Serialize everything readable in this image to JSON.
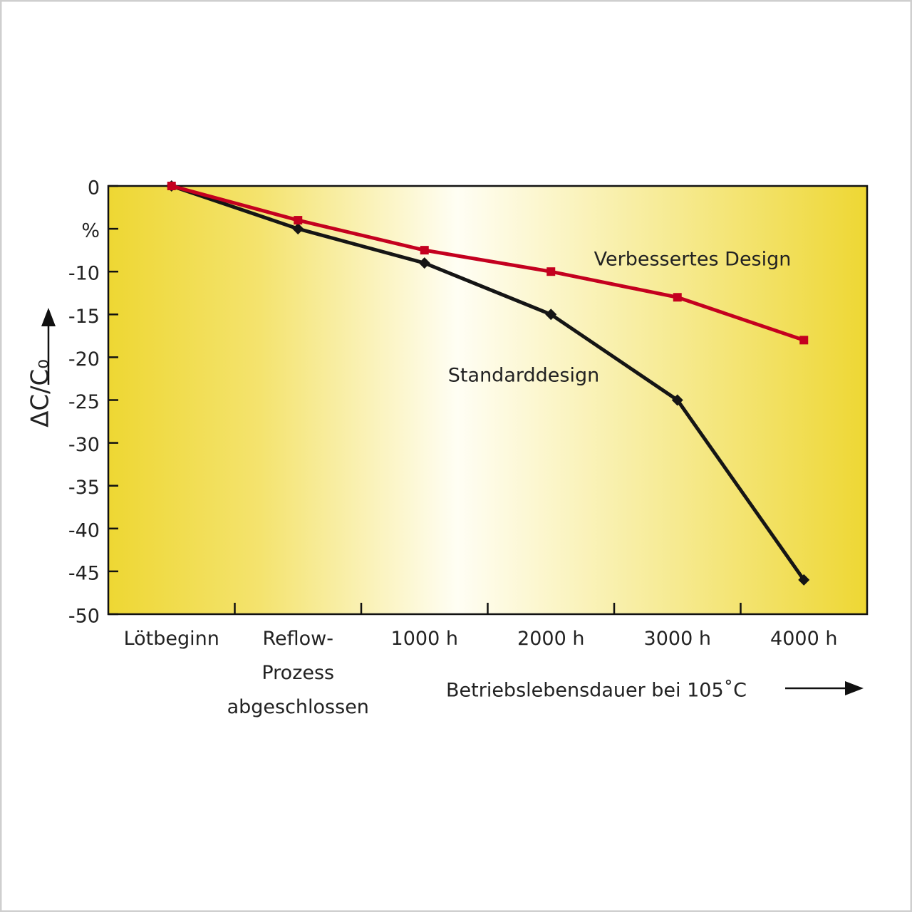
{
  "chart_data": {
    "type": "line",
    "ylabel": "ΔC/C₀",
    "xlabel": "Betriebslebensdauer bei 105˚C",
    "categories": [
      "Lötbeginn",
      "Reflow-\nProzess\nabgeschlossen",
      "1000 h",
      "2000 h",
      "3000 h",
      "4000 h"
    ],
    "series": [
      {
        "name": "Standarddesign",
        "color": "#151515",
        "marker": "diamond",
        "values": [
          0,
          -5,
          -9,
          -15,
          -25,
          -46
        ]
      },
      {
        "name": "Verbessertes Design",
        "color": "#c4001f",
        "marker": "square",
        "values": [
          0,
          -4,
          -7.5,
          -10,
          -13,
          -18
        ]
      }
    ],
    "ylim": [
      -50,
      0
    ],
    "yticks": [
      0,
      {
        "value": -5,
        "label": "%"
      },
      -10,
      -15,
      -20,
      -25,
      -30,
      -35,
      -40,
      -45,
      -50
    ]
  }
}
